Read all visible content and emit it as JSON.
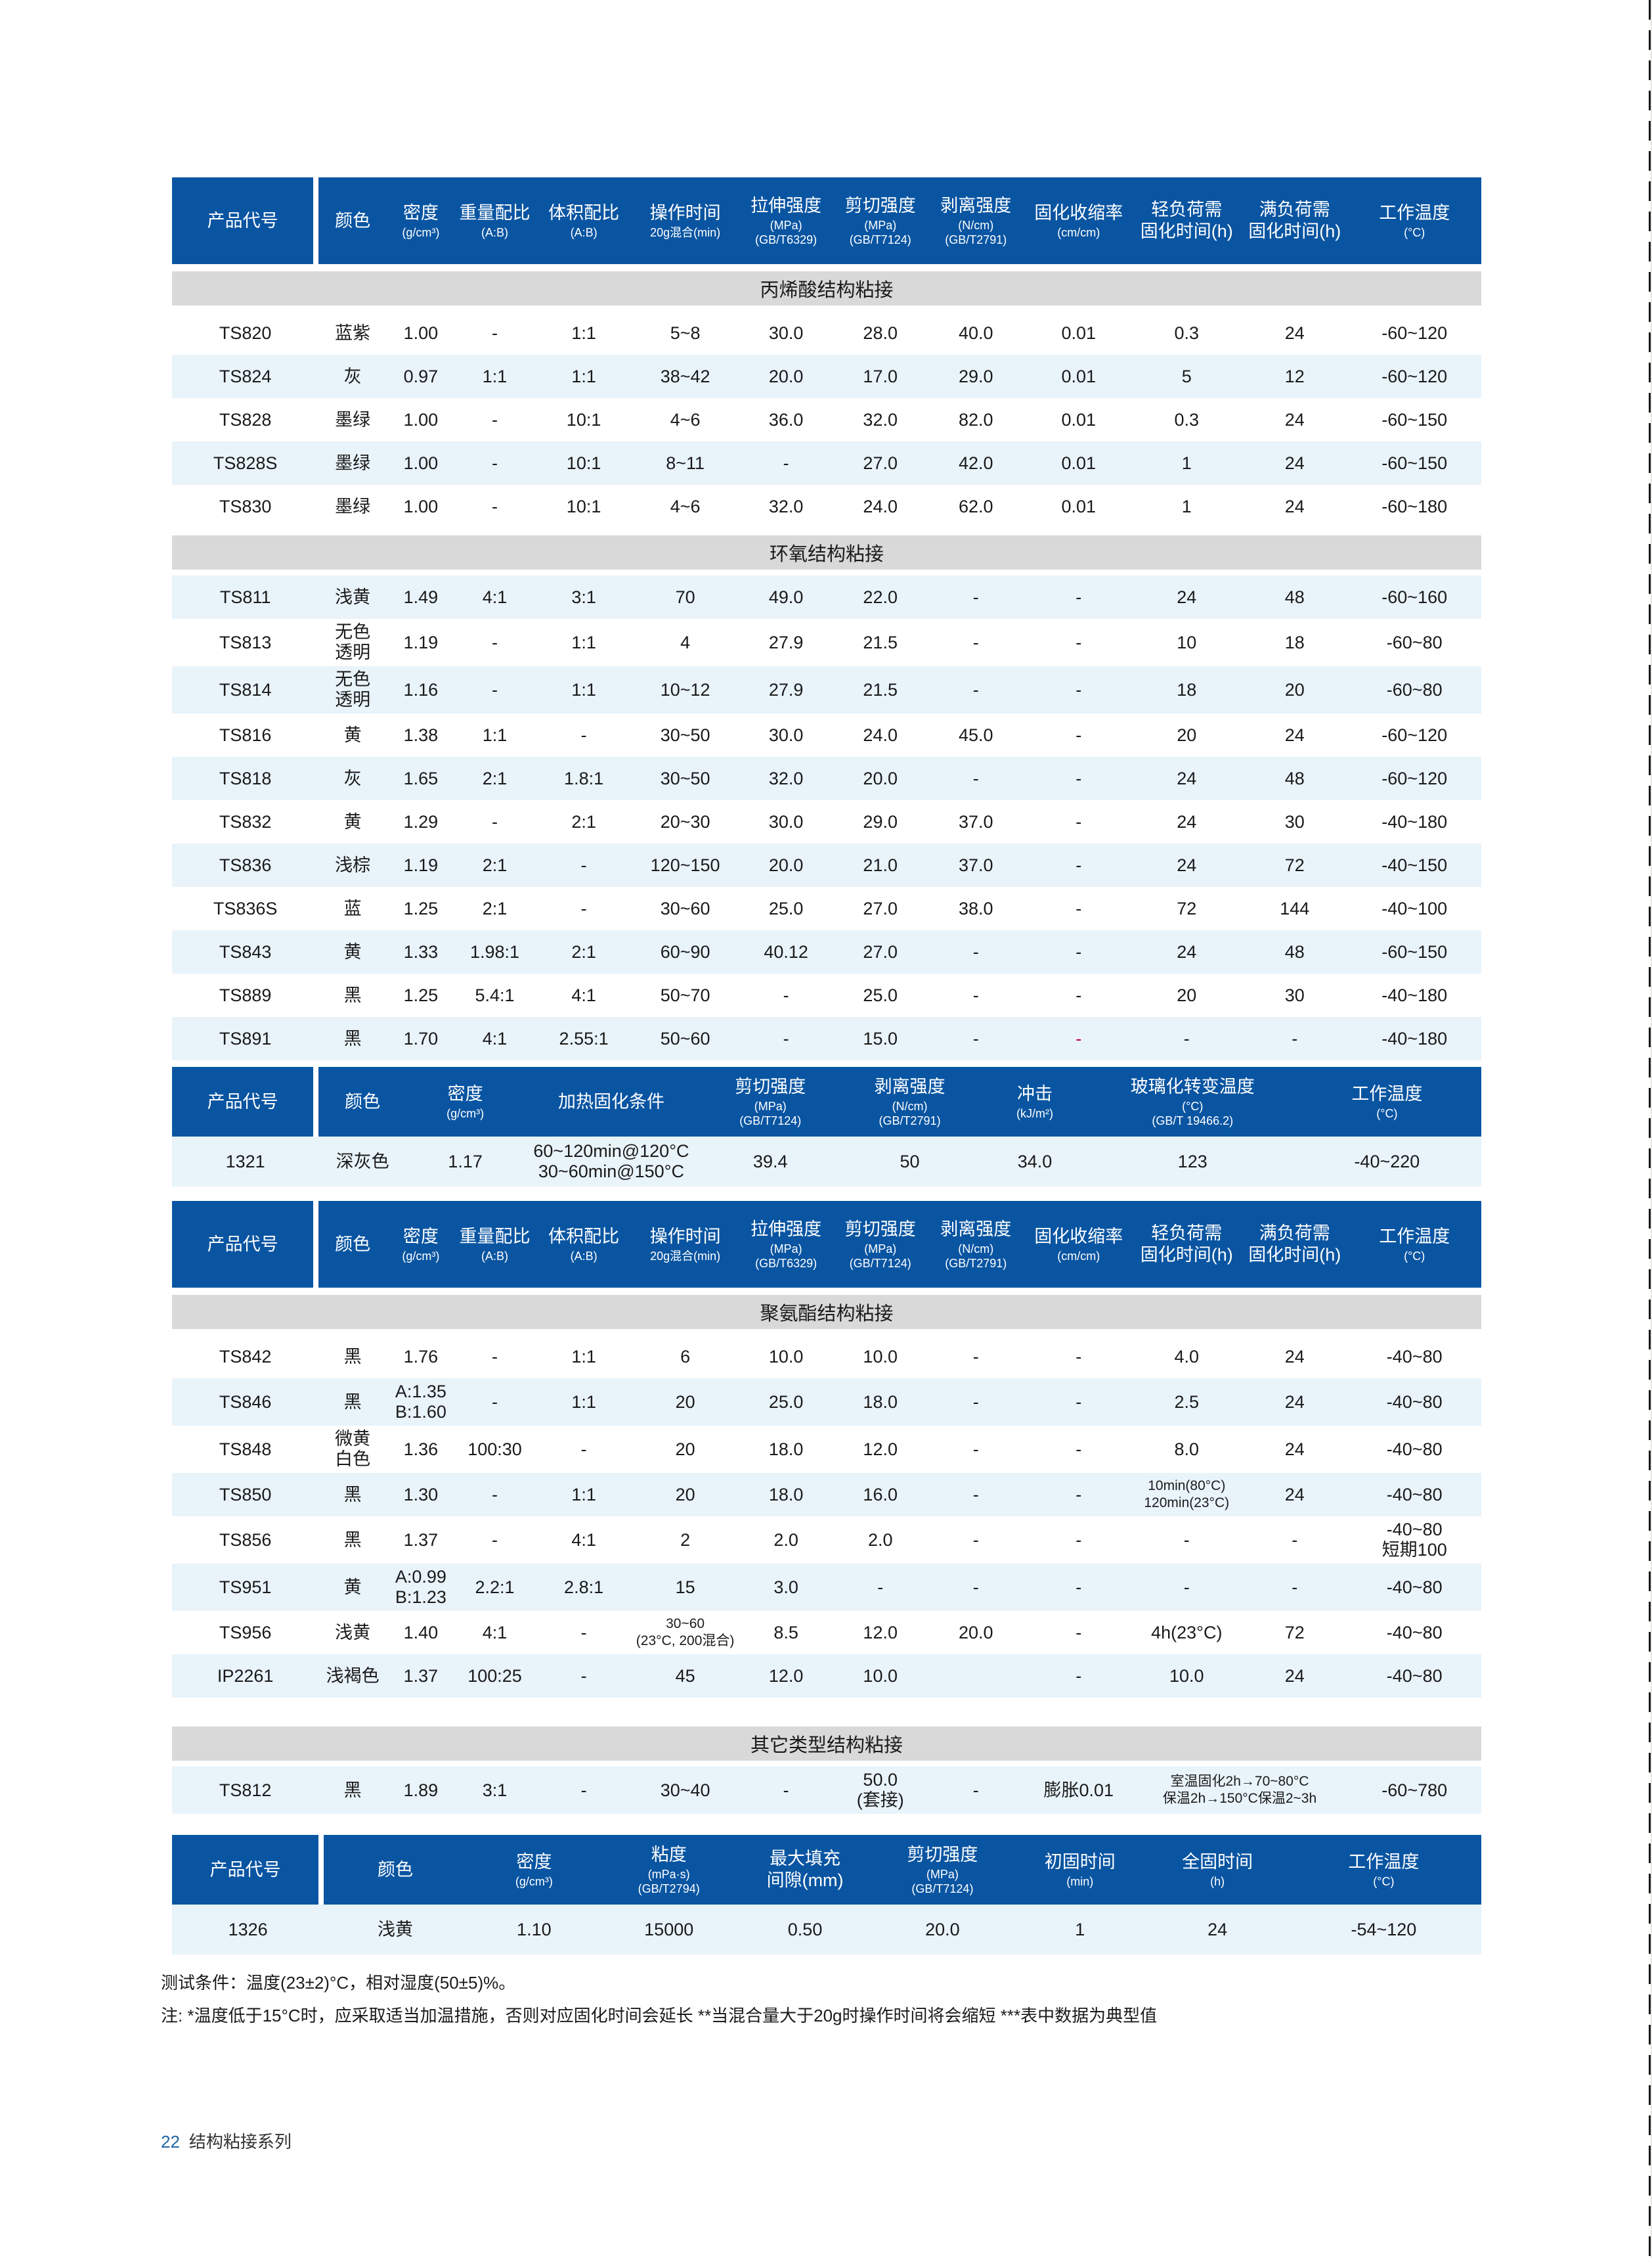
{
  "colors": {
    "header_blue": "#0a55a2",
    "section_band_gray": "#d9d9d9",
    "row_stripe_blue": "#e9f3fa",
    "red_dash": "#c00034",
    "footer_page_number_blue": "#2166a5"
  },
  "header_sets": {
    "main13": [
      {
        "m": "产品代号"
      },
      {
        "m": "颜色"
      },
      {
        "m": "密度",
        "s": "(g/cm³)"
      },
      {
        "m": "重量配比",
        "s": "(A:B)"
      },
      {
        "m": "体积配比",
        "s": "(A:B)"
      },
      {
        "m": "操作时间",
        "s": "20g混合(min)"
      },
      {
        "m": "拉伸强度",
        "s": "(MPa)\n(GB/T6329)"
      },
      {
        "m": "剪切强度",
        "s": "(MPa)\n(GB/T7124)"
      },
      {
        "m": "剥离强度",
        "s": "(N/cm)\n(GB/T2791)"
      },
      {
        "m": "固化收缩率",
        "s": "(cm/cm)"
      },
      {
        "m": "轻负荷需\n固化时间(h)"
      },
      {
        "m": "满负荷需\n固化时间(h)"
      },
      {
        "m": "工作温度",
        "s": "(°C)"
      }
    ],
    "heatcure9": [
      {
        "m": "产品代号"
      },
      {
        "m": "颜色"
      },
      {
        "m": "密度",
        "s": "(g/cm³)"
      },
      {
        "m": "加热固化条件"
      },
      {
        "m": "剪切强度",
        "s": "(MPa)\n(GB/T7124)"
      },
      {
        "m": "剥离强度",
        "s": "(N/cm)\n(GB/T2791)"
      },
      {
        "m": "冲击",
        "s": "(kJ/m²)"
      },
      {
        "m": "玻璃化转变温度",
        "s": "(°C)\n(GB/T 19466.2)"
      },
      {
        "m": "工作温度",
        "s": "(°C)"
      }
    ],
    "onecomp9": [
      {
        "m": "产品代号"
      },
      {
        "m": "颜色"
      },
      {
        "m": "密度",
        "s": "(g/cm³)"
      },
      {
        "m": "粘度",
        "s": "(mPa·s)\n(GB/T2794)"
      },
      {
        "m": "最大填充\n间隙(mm)"
      },
      {
        "m": "剪切强度",
        "s": "(MPa)\n(GB/T7124)"
      },
      {
        "m": "初固时间",
        "s": "(min)"
      },
      {
        "m": "全固时间",
        "s": "(h)"
      },
      {
        "m": "工作温度",
        "s": "(°C)"
      }
    ]
  },
  "width_sets": {
    "main13": [
      11.2,
      5.2,
      5.2,
      6.1,
      7.5,
      8.0,
      7.4,
      7.0,
      7.6,
      8.1,
      8.4,
      8.1,
      10.2
    ],
    "heatcure9": [
      11.2,
      6.7,
      9.0,
      13.3,
      11.0,
      10.3,
      8.8,
      15.3,
      14.4
    ],
    "onecomp9": [
      11.6,
      10.9,
      10.3,
      10.3,
      10.5,
      10.5,
      10.5,
      10.5,
      14.9
    ]
  },
  "tables": [
    {
      "header_set": "main13",
      "width_set": "main13",
      "blocks": [
        {
          "section": "丙烯酸结构粘接",
          "first_shaded": false,
          "rows": [
            [
              "TS820",
              "蓝紫",
              "1.00",
              "-",
              "1:1",
              "5~8",
              "30.0",
              "28.0",
              "40.0",
              "0.01",
              "0.3",
              "24",
              "-60~120"
            ],
            [
              "TS824",
              "灰",
              "0.97",
              "1:1",
              "1:1",
              "38~42",
              "20.0",
              "17.0",
              "29.0",
              "0.01",
              "5",
              "12",
              "-60~120"
            ],
            [
              "TS828",
              "墨绿",
              "1.00",
              "-",
              "10:1",
              "4~6",
              "36.0",
              "32.0",
              "82.0",
              "0.01",
              "0.3",
              "24",
              "-60~150"
            ],
            [
              "TS828S",
              "墨绿",
              "1.00",
              "-",
              "10:1",
              "8~11",
              "-",
              "27.0",
              "42.0",
              "0.01",
              "1",
              "24",
              "-60~150"
            ],
            [
              "TS830",
              "墨绿",
              "1.00",
              "-",
              "10:1",
              "4~6",
              "32.0",
              "24.0",
              "62.0",
              "0.01",
              "1",
              "24",
              "-60~180"
            ]
          ]
        },
        {
          "section": "环氧结构粘接",
          "first_shaded": true,
          "rows": [
            [
              "TS811",
              "浅黄",
              "1.49",
              "4:1",
              "3:1",
              "70",
              "49.0",
              "22.0",
              "-",
              "-",
              "24",
              "48",
              "-60~160"
            ],
            [
              "TS813",
              "无色\n透明",
              "1.19",
              "-",
              "1:1",
              "4",
              "27.9",
              "21.5",
              "-",
              "-",
              "10",
              "18",
              "-60~80"
            ],
            [
              "TS814",
              "无色\n透明",
              "1.16",
              "-",
              "1:1",
              "10~12",
              "27.9",
              "21.5",
              "-",
              "-",
              "18",
              "20",
              "-60~80"
            ],
            [
              "TS816",
              "黄",
              "1.38",
              "1:1",
              "-",
              "30~50",
              "30.0",
              "24.0",
              "45.0",
              "-",
              "20",
              "24",
              "-60~120"
            ],
            [
              "TS818",
              "灰",
              "1.65",
              "2:1",
              "1.8:1",
              "30~50",
              "32.0",
              "20.0",
              "-",
              "-",
              "24",
              "48",
              "-60~120"
            ],
            [
              "TS832",
              "黄",
              "1.29",
              "-",
              "2:1",
              "20~30",
              "30.0",
              "29.0",
              "37.0",
              "-",
              "24",
              "30",
              "-40~180"
            ],
            [
              "TS836",
              "浅棕",
              "1.19",
              "2:1",
              "-",
              "120~150",
              "20.0",
              "21.0",
              "37.0",
              "-",
              "24",
              "72",
              "-40~150"
            ],
            [
              "TS836S",
              "蓝",
              "1.25",
              "2:1",
              "-",
              "30~60",
              "25.0",
              "27.0",
              "38.0",
              "-",
              "72",
              "144",
              "-40~100"
            ],
            [
              "TS843",
              "黄",
              "1.33",
              "1.98:1",
              "2:1",
              "60~90",
              "40.12",
              "27.0",
              "-",
              "-",
              "24",
              "48",
              "-60~150"
            ],
            [
              "TS889",
              "黑",
              "1.25",
              "5.4:1",
              "4:1",
              "50~70",
              "-",
              "25.0",
              "-",
              "-",
              "20",
              "30",
              "-40~180"
            ],
            [
              "TS891",
              "黑",
              "1.70",
              "4:1",
              "2.55:1",
              "50~60",
              "-",
              "15.0",
              "-",
              {
                "v": "-",
                "red": true
              },
              "-",
              "-",
              "-40~180"
            ]
          ]
        }
      ]
    },
    {
      "header_set": "heatcure9",
      "width_set": "heatcure9",
      "blocks": [
        {
          "first_shaded": true,
          "rows": [
            [
              "1321",
              "深灰色",
              "1.17",
              "60~120min@120°C\n30~60min@150°C",
              "39.4",
              "50",
              "34.0",
              "123",
              "-40~220"
            ]
          ]
        }
      ]
    },
    {
      "header_set": "main13",
      "width_set": "main13",
      "blocks": [
        {
          "section": "聚氨酯结构粘接",
          "first_shaded": false,
          "rows": [
            [
              "TS842",
              "黑",
              "1.76",
              "-",
              "1:1",
              "6",
              "10.0",
              "10.0",
              "-",
              "-",
              "4.0",
              "24",
              "-40~80"
            ],
            [
              "TS846",
              "黑",
              "A:1.35\nB:1.60",
              "-",
              "1:1",
              "20",
              "25.0",
              "18.0",
              "-",
              "-",
              "2.5",
              "24",
              "-40~80"
            ],
            [
              "TS848",
              "微黄\n白色",
              "1.36",
              "100:30",
              "-",
              "20",
              "18.0",
              "12.0",
              "-",
              "-",
              "8.0",
              "24",
              "-40~80"
            ],
            [
              "TS850",
              "黑",
              "1.30",
              "-",
              "1:1",
              "20",
              "18.0",
              "16.0",
              "-",
              "-",
              {
                "v": "10min(80°C)\n120min(23°C)",
                "small": true
              },
              "24",
              "-40~80"
            ],
            [
              "TS856",
              "黑",
              "1.37",
              "-",
              "4:1",
              "2",
              "2.0",
              "2.0",
              "-",
              "-",
              "-",
              "-",
              "-40~80\n短期100"
            ],
            [
              "TS951",
              "黄",
              "A:0.99\nB:1.23",
              "2.2:1",
              "2.8:1",
              "15",
              "3.0",
              "-",
              "-",
              "-",
              "-",
              "-",
              "-40~80"
            ],
            [
              "TS956",
              "浅黄",
              "1.40",
              "4:1",
              "-",
              {
                "v": "30~60\n(23°C, 200混合)",
                "small": true
              },
              "8.5",
              "12.0",
              "20.0",
              "-",
              "4h(23°C)",
              "72",
              "-40~80"
            ],
            [
              "IP2261",
              "浅褐色",
              "1.37",
              "100:25",
              "-",
              "45",
              "12.0",
              "10.0",
              "",
              "-",
              "10.0",
              "24",
              "-40~80"
            ]
          ]
        },
        {
          "section": "其它类型结构粘接",
          "gap_before": true,
          "first_shaded": true,
          "rows": [
            [
              "TS812",
              "黑",
              "1.89",
              "3:1",
              "-",
              "30~40",
              "-",
              "50.0\n(套接)",
              "-",
              "膨胀0.01",
              {
                "v": "室温固化2h→70~80°C\n保温2h→150°C保温2~3h",
                "colspan": 2,
                "small": true
              },
              "-60~780"
            ]
          ]
        }
      ]
    },
    {
      "header_set": "onecomp9",
      "width_set": "onecomp9",
      "blocks": [
        {
          "first_shaded": true,
          "rows": [
            [
              "1326",
              "浅黄",
              "1.10",
              "15000",
              "0.50",
              "20.0",
              "1",
              "24",
              "-54~120"
            ]
          ]
        }
      ]
    }
  ],
  "notes": {
    "line1": "测试条件：温度(23±2)°C，相对湿度(50±5)%。",
    "line2": "注: *温度低于15°C时，应采取适当加温措施，否则对应固化时间会延长  **当混合量大于20g时操作时间将会缩短  ***表中数据为典型值"
  },
  "footer": {
    "page_number": "22",
    "series_title": "结构粘接系列"
  }
}
